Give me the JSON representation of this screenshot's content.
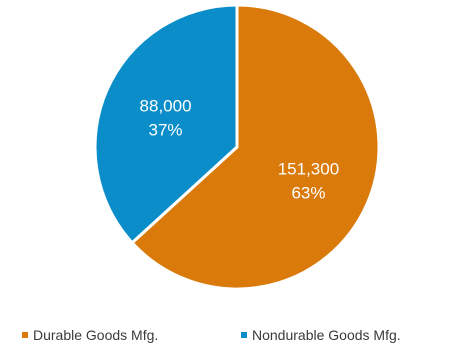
{
  "chart_data": {
    "type": "pie",
    "slices": [
      {
        "name": "Durable Goods Mfg.",
        "value": 151300,
        "value_label": "151,300",
        "percent_label": "63%",
        "percent": 63,
        "color": "#D97A0B"
      },
      {
        "name": "Nondurable Goods Mfg.",
        "value": 88000,
        "value_label": "88,000",
        "percent_label": "37%",
        "percent": 37,
        "color": "#0A8DC9"
      }
    ],
    "start_angle": "12 o'clock",
    "direction": "clockwise",
    "legend_placement": "bottom"
  }
}
